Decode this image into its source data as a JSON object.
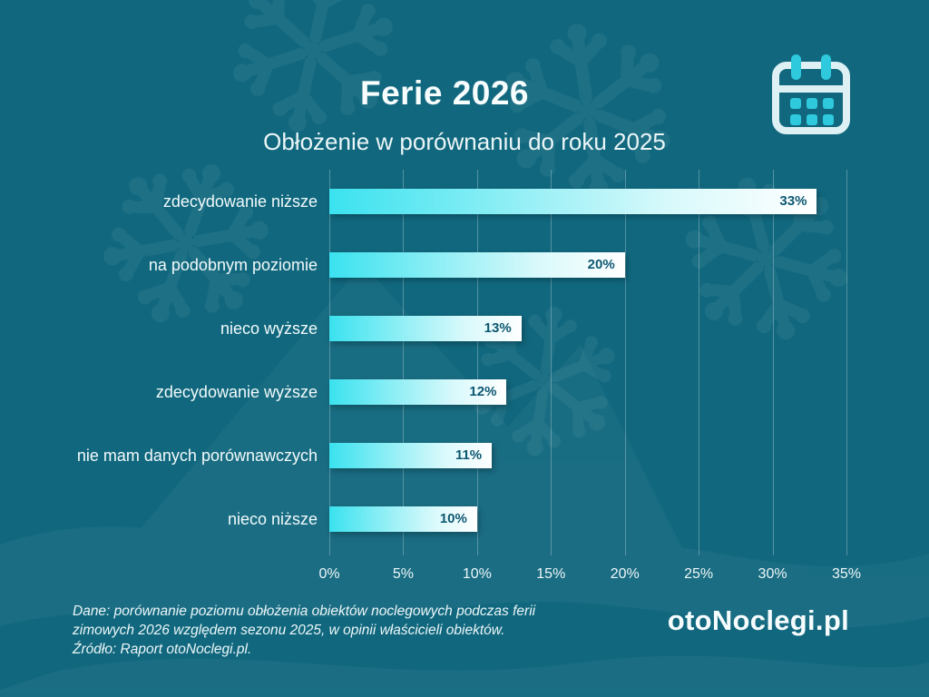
{
  "page": {
    "title": "Ferie 2026",
    "subtitle": "Obłożenie w porównaniu do roku 2025"
  },
  "brand": {
    "name": "otoNoclegi.pl"
  },
  "footer": {
    "line1": "Dane: porównanie poziomu obłożenia obiektów noclegowych podczas ferii",
    "line2": "zimowych 2026 względem sezonu 2025, w opinii właścicieli obiektów.",
    "line3": "Źródło: Raport otoNoclegi.pl."
  },
  "icons": {
    "calendar": "calendar-icon",
    "snowflake_watermark": "snowflake-icon"
  },
  "colors": {
    "background": "#11687e",
    "bar_gradient_start": "#3ae2ef",
    "bar_gradient_end": "#ffffff",
    "bar_value_text": "#0d5871",
    "gridline": "rgba(255,255,255,0.28)",
    "text": "#f2fafb",
    "calendar_accent": "#2fc9de",
    "calendar_outline": "#ddf1f4"
  },
  "chart_data": {
    "type": "bar",
    "orientation": "horizontal",
    "title": "Ferie 2026",
    "subtitle": "Obłożenie w porównaniu do roku 2025",
    "categories": [
      "zdecydowanie niższe",
      "na podobnym poziomie",
      "nieco wyższe",
      "zdecydowanie wyższe",
      "nie mam danych porównawczych",
      "nieco niższe"
    ],
    "values": [
      33,
      20,
      13,
      12,
      11,
      10
    ],
    "value_labels": [
      "33%",
      "20%",
      "13%",
      "12%",
      "11%",
      "10%"
    ],
    "xlabel": "",
    "ylabel": "",
    "xlim": [
      0,
      35
    ],
    "xticks": [
      0,
      5,
      10,
      15,
      20,
      25,
      30,
      35
    ],
    "xtick_labels": [
      "0%",
      "5%",
      "10%",
      "15%",
      "20%",
      "25%",
      "30%",
      "35%"
    ],
    "grid": true,
    "legend": false,
    "source": "Raport otoNoclegi.pl"
  }
}
